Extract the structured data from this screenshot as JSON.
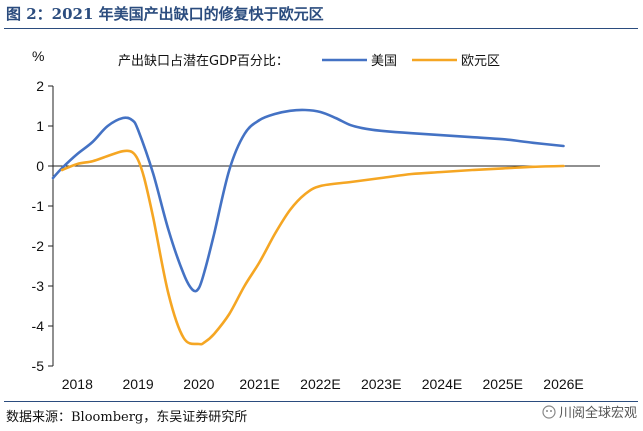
{
  "figure": {
    "title": "图 2：2021 年美国产出缺口的修复快于欧元区",
    "source": "数据来源：Bloomberg，东吴证券研究所",
    "watermark": "川阅全球宏观"
  },
  "chart_data": {
    "type": "line",
    "title": "",
    "ylabel": "%",
    "xlabel": "",
    "legend_title": "产出缺口占潜在GDP百分比：",
    "legend_position": "top",
    "ylim": [
      -5,
      2
    ],
    "yticks": [
      2,
      1,
      0,
      -1,
      -2,
      -3,
      -4,
      -5
    ],
    "xlim": [
      2017.6,
      2026.6
    ],
    "xticks": [
      "2018",
      "2019",
      "2020",
      "2021E",
      "2022E",
      "2023E",
      "2024E",
      "2025E",
      "2026E"
    ],
    "xtick_positions": [
      2018,
      2019,
      2020,
      2021,
      2022,
      2023,
      2024,
      2025,
      2026
    ],
    "grid": false,
    "series": [
      {
        "name": "美国",
        "color": "#4472C4",
        "x": [
          2017.6,
          2017.75,
          2018.0,
          2018.25,
          2018.5,
          2018.75,
          2018.9,
          2019.0,
          2019.25,
          2019.5,
          2019.75,
          2019.9,
          2020.0,
          2020.1,
          2020.25,
          2020.5,
          2020.75,
          2021.0,
          2021.25,
          2021.5,
          2021.75,
          2022.0,
          2022.25,
          2022.5,
          2022.75,
          2023.0,
          2023.5,
          2024.0,
          2024.5,
          2025.0,
          2025.5,
          2026.0
        ],
        "y": [
          -0.3,
          -0.05,
          0.3,
          0.6,
          1.0,
          1.2,
          1.15,
          0.9,
          -0.2,
          -1.6,
          -2.7,
          -3.1,
          -3.05,
          -2.6,
          -1.7,
          -0.1,
          0.8,
          1.15,
          1.3,
          1.38,
          1.4,
          1.35,
          1.2,
          1.02,
          0.93,
          0.88,
          0.82,
          0.77,
          0.72,
          0.67,
          0.58,
          0.5
        ]
      },
      {
        "name": "欧元区",
        "color": "#F5A623",
        "x": [
          2017.75,
          2018.0,
          2018.25,
          2018.5,
          2018.75,
          2018.9,
          2019.0,
          2019.1,
          2019.25,
          2019.5,
          2019.75,
          2020.0,
          2020.1,
          2020.25,
          2020.5,
          2020.75,
          2021.0,
          2021.25,
          2021.5,
          2021.75,
          2022.0,
          2022.5,
          2023.0,
          2023.5,
          2024.0,
          2024.5,
          2025.0,
          2025.5,
          2026.0
        ],
        "y": [
          -0.1,
          0.05,
          0.12,
          0.25,
          0.37,
          0.35,
          0.15,
          -0.3,
          -1.3,
          -3.2,
          -4.3,
          -4.45,
          -4.4,
          -4.2,
          -3.7,
          -3.0,
          -2.4,
          -1.7,
          -1.1,
          -0.7,
          -0.5,
          -0.4,
          -0.3,
          -0.2,
          -0.15,
          -0.1,
          -0.06,
          -0.02,
          0.0
        ]
      }
    ]
  }
}
